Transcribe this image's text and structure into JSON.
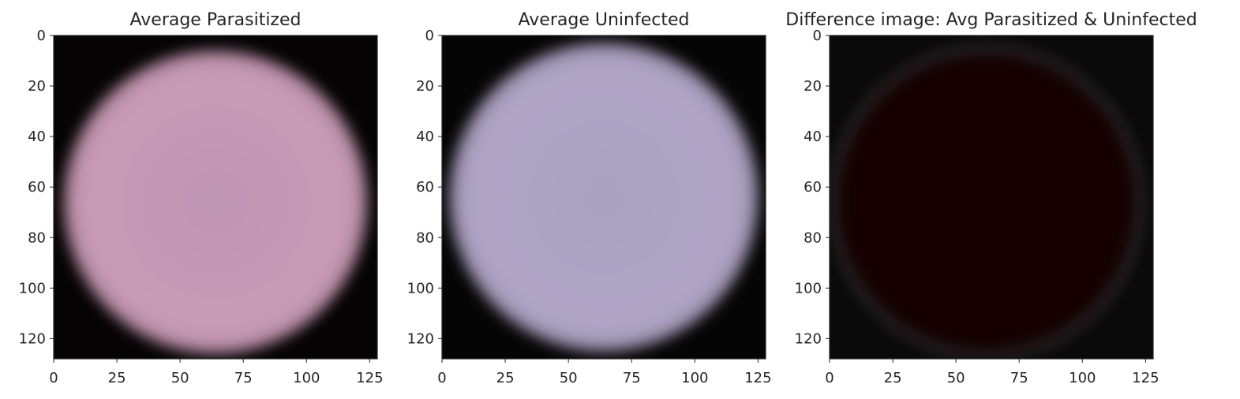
{
  "chart_data": [
    {
      "type": "heatmap",
      "title": "Average Parasitized",
      "xlim": [
        0,
        128
      ],
      "ylim": [
        128,
        0
      ],
      "x_ticks": [
        0,
        25,
        50,
        75,
        100,
        125
      ],
      "y_ticks": [
        0,
        20,
        40,
        60,
        80,
        100,
        120
      ],
      "xlabel": "",
      "ylabel": "",
      "image": {
        "background_color": "#050303",
        "blob_color": "#c99bb6",
        "blob_center_color": "#be95b3",
        "center": [
          64,
          66
        ],
        "radius": 60
      }
    },
    {
      "type": "heatmap",
      "title": "Average Uninfected",
      "xlim": [
        0,
        128
      ],
      "ylim": [
        128,
        0
      ],
      "x_ticks": [
        0,
        25,
        50,
        75,
        100,
        125
      ],
      "y_ticks": [
        0,
        20,
        40,
        60,
        80,
        100,
        120
      ],
      "xlabel": "",
      "ylabel": "",
      "image": {
        "background_color": "#050505",
        "blob_color": "#b0a5c6",
        "blob_center_color": "#aaa2c0",
        "center": [
          64,
          64
        ],
        "radius": 61
      }
    },
    {
      "type": "heatmap",
      "title": "Difference image: Avg Parasitized & Uninfected",
      "xlim": [
        0,
        128
      ],
      "ylim": [
        128,
        0
      ],
      "x_ticks": [
        0,
        25,
        50,
        75,
        100,
        125
      ],
      "y_ticks": [
        0,
        20,
        40,
        60,
        80,
        100,
        120
      ],
      "xlabel": "",
      "ylabel": "",
      "image": {
        "background_color": "#0a0a0a",
        "blob_color": "#190606",
        "blob_center_color": "#140404",
        "ring_color": "#4a3a3e",
        "center": [
          62,
          66
        ],
        "radius": 58
      }
    }
  ]
}
